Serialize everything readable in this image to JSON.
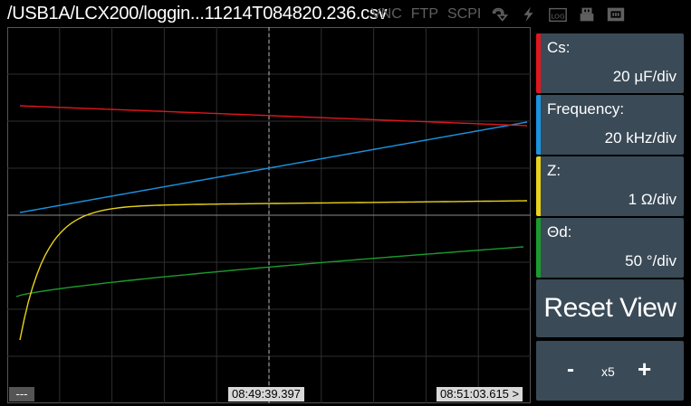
{
  "header": {
    "file_path": "/USB1A/LCX200/loggin...11214T084820.236.csv",
    "status": {
      "vnc": "VNC",
      "ftp": "FTP",
      "scpi": "SCPI"
    },
    "icons": [
      "loop-icon",
      "lightning-icon",
      "log-icon",
      "usb-icon",
      "network-icon"
    ],
    "status_color": "#5f5f5f"
  },
  "plot": {
    "more_label": "---",
    "cursor_time": "08:49:39.397",
    "end_time": "08:51:03.615 >",
    "grid": true,
    "cursor_line": "vertical dashed at center"
  },
  "traces": [
    {
      "name": "Cs:",
      "scale": "20 µF/div",
      "color": "#e0161e"
    },
    {
      "name": "Frequency:",
      "scale": "20 kHz/div",
      "color": "#1a93e0"
    },
    {
      "name": "Z:",
      "scale": "1 Ω/div",
      "color": "#e8d21a"
    },
    {
      "name": "Θd:",
      "scale": "50 °/div",
      "color": "#1b9b2c"
    }
  ],
  "controls": {
    "reset_view": "Reset View",
    "zoom_minus": "-",
    "zoom_level": "x5",
    "zoom_plus": "+"
  }
}
